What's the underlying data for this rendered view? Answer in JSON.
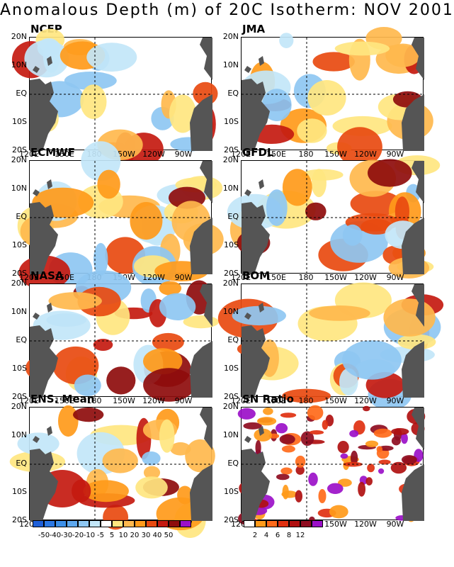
{
  "title": "Anomalous Depth (m) of 20C Isotherm: NOV 2001",
  "lat_labels": [
    "20N",
    "10N",
    "EQ",
    "10S",
    "20S"
  ],
  "lon_labels": [
    "120E",
    "150E",
    "180",
    "150W",
    "120W",
    "90W"
  ],
  "panels": [
    {
      "name": "NCEP",
      "type": "anomaly"
    },
    {
      "name": "JMA",
      "type": "anomaly"
    },
    {
      "name": "ECMWF",
      "type": "anomaly"
    },
    {
      "name": "GFDL",
      "type": "anomaly"
    },
    {
      "name": "NASA",
      "type": "anomaly"
    },
    {
      "name": "BOM",
      "type": "anomaly"
    },
    {
      "name": "ENS. Mean",
      "type": "anomaly"
    },
    {
      "name": "SN Ratio",
      "type": "snratio"
    }
  ],
  "anomaly_scale": {
    "labels": [
      "-50",
      "-40",
      "-30",
      "-20",
      "-10",
      "-5",
      "5",
      "10",
      "20",
      "30",
      "40",
      "50"
    ],
    "colors": [
      "#1e5fd8",
      "#2b78e4",
      "#3c8fe8",
      "#5ea8ee",
      "#8ec7f2",
      "#c2e6f8",
      "#ffffff",
      "#ffe680",
      "#ffb84d",
      "#ff9a1a",
      "#e84a10",
      "#c41a10",
      "#8e0c0c",
      "#9b10c8"
    ]
  },
  "sn_scale": {
    "labels": [
      "2",
      "4",
      "6",
      "8",
      "12"
    ],
    "colors": [
      "#ffffff",
      "#ff9a1a",
      "#ff6a1a",
      "#e03010",
      "#b01010",
      "#8e0c20",
      "#9b10c8"
    ]
  },
  "colors": {
    "land": "#555555",
    "background": "#ffffff"
  }
}
